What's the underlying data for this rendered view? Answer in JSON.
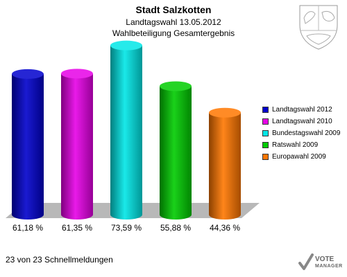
{
  "title": "Stadt Salzkotten",
  "subtitle": "Landtagswahl 13.05.2012",
  "subtitle2": "Wahlbeteiligung Gesamtergebnis",
  "footer": "23 von 23 Schnellmeldungen",
  "logo": {
    "line1": "VOTE",
    "line2": "MANAGER"
  },
  "chart_data": {
    "type": "bar",
    "title": "Stadt Salzkotten",
    "categories": [
      "Landtagswahl 2012",
      "Landtagswahl 2010",
      "Bundestagswahl 2009",
      "Ratswahl 2009",
      "Europawahl 2009"
    ],
    "values": [
      61.18,
      61.35,
      73.59,
      55.88,
      44.36
    ],
    "value_labels": [
      "61,18 %",
      "61,35 %",
      "73,59 %",
      "55,88 %",
      "44,36 %"
    ],
    "colors": [
      "#0000cc",
      "#e600e6",
      "#00e6e6",
      "#00cc00",
      "#ff7700"
    ],
    "legend_placement": "right",
    "grid": false
  }
}
